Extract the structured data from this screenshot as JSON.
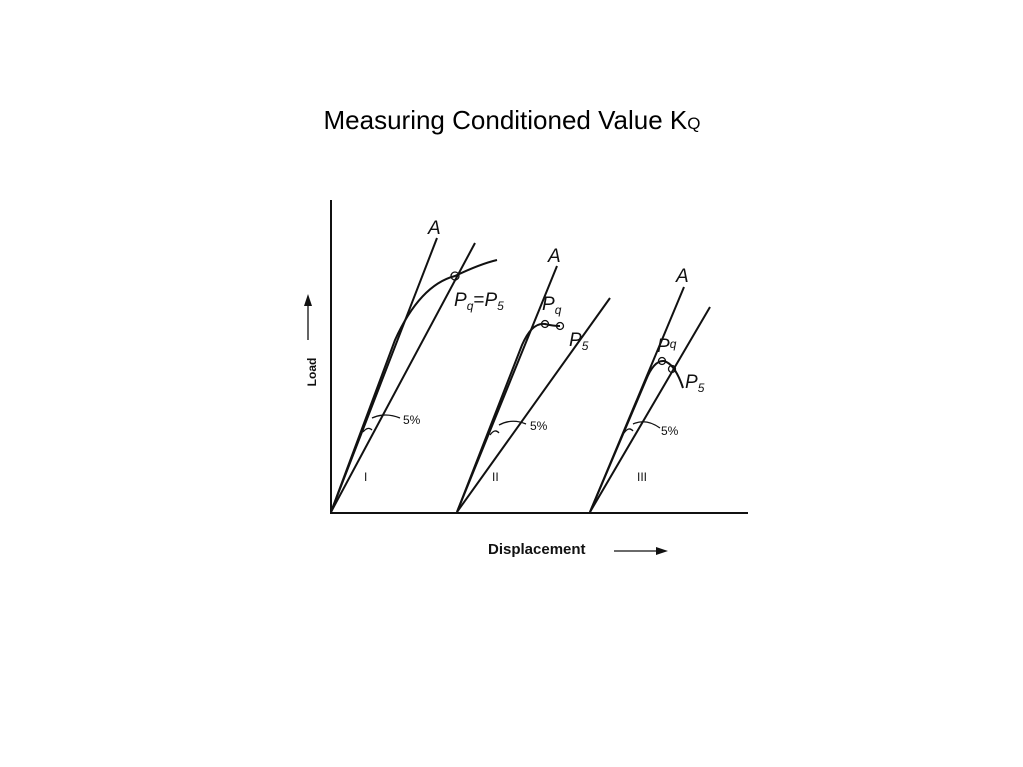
{
  "title": {
    "main": "Measuring Conditioned Value K",
    "sub": "Q"
  },
  "axes": {
    "y": "Load",
    "x": "Displacement"
  },
  "panels": [
    {
      "numeral": "I",
      "line": "A",
      "offset": "5%",
      "points": [
        {
          "symbol": "P",
          "sub": "q"
        },
        {
          "symbol": "P",
          "sub": "5"
        }
      ],
      "joiner": "="
    },
    {
      "numeral": "II",
      "line": "A",
      "offset": "5%",
      "points": [
        {
          "symbol": "P",
          "sub": "q"
        },
        {
          "symbol": "P",
          "sub": "5"
        }
      ]
    },
    {
      "numeral": "III",
      "line": "A",
      "offset": "5%",
      "points": [
        {
          "symbol": "P",
          "sub": "q"
        },
        {
          "symbol": "P",
          "sub": "5"
        }
      ]
    }
  ]
}
